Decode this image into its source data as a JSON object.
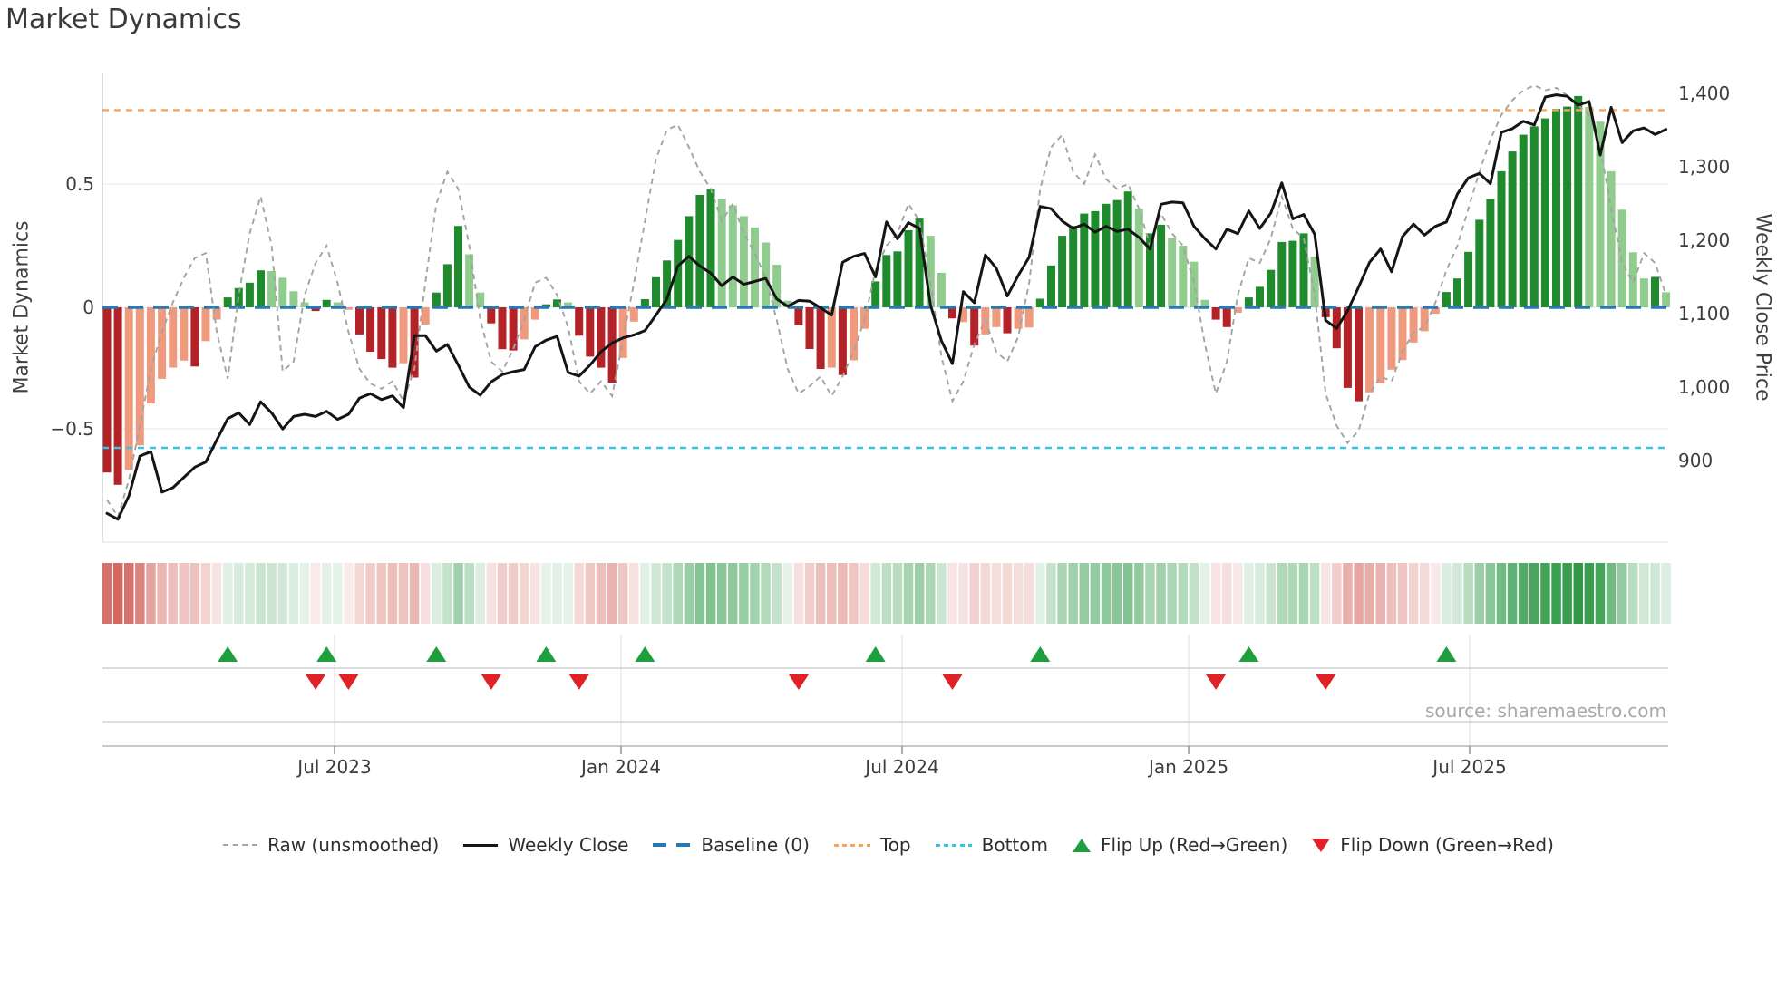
{
  "title": "Market Dynamics",
  "source": "source: sharemaestro.com",
  "palette": {
    "bar_strong_red": "#b22226",
    "bar_weak_red": "#f09a7d",
    "bar_strong_green": "#1f8b2d",
    "bar_weak_green": "#90cc8e",
    "price_line": "#151515",
    "raw_line": "#a3a3a3",
    "baseline": "#2679b2",
    "top_line": "#f7a35c",
    "bottom_line": "#38c2e6",
    "flip_up": "#1f9e3e",
    "flip_down": "#e02227",
    "heat_green_rgb": "40,150,65",
    "heat_red_rgb": "201,72,62"
  },
  "legend": {
    "items": [
      "Raw (unsmoothed)",
      "Weekly Close",
      "Baseline (0)",
      "Top",
      "Bottom",
      "Flip Up (Red→Green)",
      "Flip Down (Green→Red)"
    ]
  },
  "chart_data": {
    "type": "combo",
    "x_start": "2023-02-17",
    "x_interval_days": 7,
    "n_points": 143,
    "x_ticks": [
      "Jul 2023",
      "Jan 2024",
      "Jul 2024",
      "Jan 2025",
      "Jul 2025"
    ],
    "left_axis": {
      "label": "Market Dynamics",
      "tick_labels": [
        "0.5",
        "0",
        "−0.5"
      ],
      "tick_values": [
        0.5,
        0,
        -0.5
      ],
      "range": [
        -0.95,
        0.95
      ]
    },
    "right_axis": {
      "label": "Weekly Close Price",
      "tick_labels": [
        "1,400",
        "1,300",
        "1,200",
        "1,100",
        "1,000",
        "900"
      ],
      "tick_values": [
        1400,
        1300,
        1200,
        1100,
        1000,
        900
      ],
      "range": [
        789,
        1428
      ]
    },
    "baseline": 0,
    "top": 0.8,
    "bottom": -0.57,
    "flip_up_indices": [
      11,
      20,
      30,
      40,
      49,
      70,
      85,
      104,
      122
    ],
    "flip_down_indices": [
      19,
      22,
      35,
      43,
      63,
      77,
      101,
      111
    ],
    "series": [
      {
        "name": "Market Dynamics (oscillator bars)",
        "type": "bar",
        "shade": "sswwwwwwswwsssswwwwsswwsssswswssswwssswwsswsssswwssssssswwwwwwwssswswwssssswwswswwswwssssssssswsswwwwsswsssssswsssswwwwwwwssssssssssssswwwwwwsw",
        "values": [
          -0.67,
          -0.72,
          -0.66,
          -0.56,
          -0.39,
          -0.29,
          -0.245,
          -0.216,
          -0.24,
          -0.137,
          -0.05,
          0.04,
          0.078,
          0.1,
          0.15,
          0.147,
          0.12,
          0.065,
          0.02,
          -0.015,
          0.03,
          0.02,
          -0.01,
          -0.11,
          -0.18,
          -0.21,
          -0.245,
          -0.227,
          -0.285,
          -0.07,
          0.06,
          0.175,
          0.33,
          0.215,
          0.06,
          -0.065,
          -0.17,
          -0.175,
          -0.13,
          -0.05,
          0.012,
          0.032,
          0.02,
          -0.115,
          -0.2,
          -0.245,
          -0.305,
          -0.205,
          -0.058,
          0.033,
          0.122,
          0.19,
          0.273,
          0.37,
          0.456,
          0.48,
          0.44,
          0.414,
          0.37,
          0.324,
          0.263,
          0.173,
          0.027,
          -0.073,
          -0.169,
          -0.25,
          -0.245,
          -0.275,
          -0.215,
          -0.087,
          0.105,
          0.212,
          0.227,
          0.313,
          0.36,
          0.29,
          0.14,
          -0.045,
          -0.06,
          -0.155,
          -0.11,
          -0.08,
          -0.105,
          -0.087,
          -0.082,
          0.035,
          0.17,
          0.29,
          0.33,
          0.38,
          0.39,
          0.42,
          0.435,
          0.47,
          0.4,
          0.3,
          0.335,
          0.28,
          0.25,
          0.185,
          0.03,
          -0.05,
          -0.08,
          -0.022,
          0.04,
          0.083,
          0.152,
          0.265,
          0.27,
          0.3,
          0.205,
          -0.04,
          -0.166,
          -0.327,
          -0.381,
          -0.345,
          -0.309,
          -0.253,
          -0.214,
          -0.143,
          -0.097,
          -0.026,
          0.062,
          0.117,
          0.225,
          0.355,
          0.44,
          0.552,
          0.632,
          0.7,
          0.734,
          0.766,
          0.805,
          0.814,
          0.857,
          0.812,
          0.753,
          0.552,
          0.396,
          0.223,
          0.117,
          0.123,
          0.061
        ]
      },
      {
        "name": "Raw (unsmoothed)",
        "type": "line",
        "style": "dashed",
        "values": [
          -0.78,
          -0.85,
          -0.7,
          -0.48,
          -0.25,
          -0.1,
          0.02,
          0.12,
          0.2,
          0.22,
          -0.1,
          -0.29,
          0.05,
          0.3,
          0.45,
          0.25,
          -0.26,
          -0.22,
          0.05,
          0.18,
          0.25,
          0.1,
          -0.1,
          -0.25,
          -0.31,
          -0.33,
          -0.3,
          -0.38,
          -0.25,
          0.1,
          0.42,
          0.55,
          0.48,
          0.25,
          -0.05,
          -0.22,
          -0.26,
          -0.17,
          -0.05,
          0.1,
          0.12,
          0.05,
          -0.08,
          -0.3,
          -0.35,
          -0.3,
          -0.36,
          -0.13,
          0.1,
          0.35,
          0.6,
          0.72,
          0.74,
          0.65,
          0.55,
          0.48,
          0.35,
          0.42,
          0.3,
          0.22,
          0.12,
          -0.05,
          -0.25,
          -0.35,
          -0.32,
          -0.28,
          -0.36,
          -0.28,
          -0.18,
          -0.05,
          0.15,
          0.25,
          0.3,
          0.42,
          0.35,
          0.1,
          -0.2,
          -0.38,
          -0.3,
          -0.15,
          -0.05,
          -0.18,
          -0.22,
          -0.12,
          0.1,
          0.48,
          0.65,
          0.7,
          0.55,
          0.5,
          0.62,
          0.52,
          0.48,
          0.5,
          0.4,
          0.25,
          0.38,
          0.3,
          0.25,
          0.1,
          -0.15,
          -0.35,
          -0.22,
          0.05,
          0.2,
          0.18,
          0.28,
          0.45,
          0.32,
          0.28,
          0.05,
          -0.35,
          -0.48,
          -0.55,
          -0.5,
          -0.35,
          -0.28,
          -0.3,
          -0.18,
          -0.1,
          -0.08,
          0.02,
          0.15,
          0.25,
          0.4,
          0.55,
          0.68,
          0.78,
          0.84,
          0.88,
          0.9,
          0.88,
          0.89,
          0.86,
          0.82,
          0.78,
          0.65,
          0.4,
          0.18,
          0.1,
          0.22,
          0.18,
          0.05
        ]
      },
      {
        "name": "Weekly Close",
        "type": "line",
        "axis": "right",
        "values": [
          828,
          820,
          852,
          906,
          912,
          857,
          863,
          877,
          891,
          898,
          928,
          957,
          965,
          949,
          980,
          965,
          943,
          960,
          963,
          960,
          967,
          956,
          963,
          985,
          991,
          983,
          988,
          972,
          1070,
          1070,
          1049,
          1058,
          1030,
          1000,
          989,
          1007,
          1017,
          1021,
          1024,
          1055,
          1064,
          1069,
          1020,
          1015,
          1030,
          1048,
          1060,
          1067,
          1071,
          1077,
          1098,
          1120,
          1165,
          1178,
          1165,
          1155,
          1138,
          1150,
          1140,
          1144,
          1148,
          1120,
          1110,
          1118,
          1117,
          1108,
          1098,
          1170,
          1178,
          1182,
          1150,
          1225,
          1202,
          1224,
          1216,
          1112,
          1063,
          1032,
          1130,
          1115,
          1180,
          1162,
          1124,
          1152,
          1177,
          1246,
          1243,
          1226,
          1216,
          1222,
          1211,
          1219,
          1212,
          1215,
          1204,
          1188,
          1249,
          1252,
          1251,
          1219,
          1202,
          1188,
          1215,
          1209,
          1240,
          1216,
          1237,
          1278,
          1229,
          1235,
          1208,
          1091,
          1080,
          1104,
          1136,
          1170,
          1188,
          1157,
          1205,
          1222,
          1207,
          1219,
          1225,
          1263,
          1285,
          1291,
          1277,
          1347,
          1352,
          1362,
          1357,
          1395,
          1398,
          1396,
          1384,
          1389,
          1316,
          1381,
          1333,
          1349,
          1353,
          1344,
          1351
        ]
      }
    ]
  }
}
